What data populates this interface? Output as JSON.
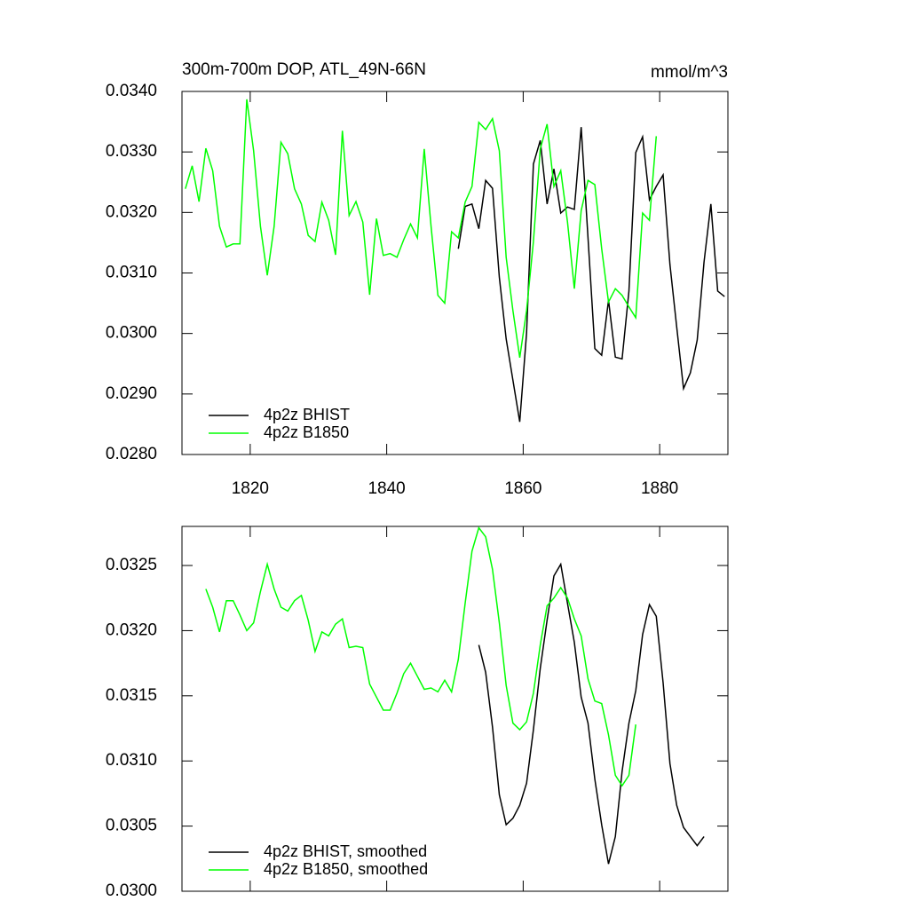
{
  "chart_data": [
    {
      "type": "line",
      "title": "300m-700m DOP, ATL_49N-66N",
      "units": "mmol/m^3",
      "x": [
        1810.5,
        1811.5,
        1812.5,
        1813.5,
        1814.5,
        1815.5,
        1816.5,
        1817.5,
        1818.5,
        1819.5,
        1820.5,
        1821.5,
        1822.5,
        1823.5,
        1824.5,
        1825.5,
        1826.5,
        1827.5,
        1828.5,
        1829.5,
        1830.5,
        1831.5,
        1832.5,
        1833.5,
        1834.5,
        1835.5,
        1836.5,
        1837.5,
        1838.5,
        1839.5,
        1840.5,
        1841.5,
        1842.5,
        1843.5,
        1844.5,
        1845.5,
        1846.5,
        1847.5,
        1848.5,
        1849.5,
        1850.5,
        1851.5,
        1852.5,
        1853.5,
        1854.5,
        1855.5,
        1856.5,
        1857.5,
        1858.5,
        1859.5,
        1860.5,
        1861.5,
        1862.5,
        1863.5,
        1864.5,
        1865.5,
        1866.5,
        1867.5,
        1868.5,
        1869.5,
        1870.5,
        1871.5,
        1872.5,
        1873.5,
        1874.5,
        1875.5,
        1876.5,
        1877.5,
        1878.5,
        1879.5,
        1880.5,
        1881.5,
        1882.5,
        1883.5,
        1884.5,
        1885.5,
        1886.5,
        1887.5,
        1888.5,
        1889.5
      ],
      "series": [
        {
          "name": "4p2z BHIST",
          "color": "#000000",
          "values": [
            null,
            null,
            null,
            null,
            null,
            null,
            null,
            null,
            null,
            null,
            null,
            null,
            null,
            null,
            null,
            null,
            null,
            null,
            null,
            null,
            null,
            null,
            null,
            null,
            null,
            null,
            null,
            null,
            null,
            null,
            null,
            null,
            null,
            null,
            null,
            null,
            null,
            null,
            null,
            null,
            0.0314,
            0.0321,
            0.03214,
            0.03173,
            0.03253,
            0.0324,
            0.03093,
            0.02991,
            0.02923,
            0.02854,
            0.03001,
            0.0328,
            0.03319,
            0.03214,
            0.03272,
            0.03199,
            0.03209,
            0.03205,
            0.03341,
            0.03158,
            0.02975,
            0.02964,
            0.03055,
            0.02961,
            0.02958,
            0.0307,
            0.03299,
            0.03325,
            0.03221,
            0.03243,
            0.03262,
            0.03114,
            0.03011,
            0.02909,
            0.02935,
            0.02989,
            0.03118,
            0.03214,
            0.0307,
            0.03061
          ]
        },
        {
          "name": "4p2z B1850",
          "color": "#00ff00",
          "values": [
            0.03239,
            0.03277,
            0.03218,
            0.03306,
            0.03269,
            0.03177,
            0.03143,
            0.03148,
            0.03148,
            0.03387,
            0.03302,
            0.03177,
            0.03096,
            0.03177,
            0.03316,
            0.03297,
            0.03239,
            0.03214,
            0.03162,
            0.03152,
            0.03217,
            0.03187,
            0.0313,
            0.03335,
            0.03195,
            0.03218,
            0.03184,
            0.03064,
            0.0319,
            0.03129,
            0.03132,
            0.03126,
            0.03155,
            0.03181,
            0.03158,
            0.03305,
            0.03177,
            0.03063,
            0.0305,
            0.03168,
            0.03158,
            0.03217,
            0.03243,
            0.03349,
            0.03337,
            0.03355,
            0.03302,
            0.03126,
            0.03038,
            0.0296,
            0.03038,
            0.03152,
            0.03305,
            0.03346,
            0.03243,
            0.03269,
            0.03184,
            0.03074,
            0.03203,
            0.03253,
            0.03246,
            0.0314,
            0.03052,
            0.03074,
            0.03063,
            0.03044,
            0.03026,
            0.03199,
            0.03187,
            0.03326,
            null,
            null,
            null,
            null,
            null,
            null,
            null,
            null,
            null,
            null
          ]
        }
      ],
      "xlim": [
        1810,
        1890
      ],
      "xticks": [
        1820,
        1840,
        1860,
        1880
      ],
      "ylim": [
        0.028,
        0.034
      ],
      "yticks": [
        {
          "value": 0.028,
          "label": "0.0280"
        },
        {
          "value": 0.029,
          "label": "0.0290"
        },
        {
          "value": 0.03,
          "label": "0.0300"
        },
        {
          "value": 0.031,
          "label": "0.0310"
        },
        {
          "value": 0.032,
          "label": "0.0320"
        },
        {
          "value": 0.033,
          "label": "0.0330"
        },
        {
          "value": 0.034,
          "label": "0.0340"
        }
      ],
      "legend": "lower left"
    },
    {
      "type": "line",
      "x": [
        1810.5,
        1811.5,
        1812.5,
        1813.5,
        1814.5,
        1815.5,
        1816.5,
        1817.5,
        1818.5,
        1819.5,
        1820.5,
        1821.5,
        1822.5,
        1823.5,
        1824.5,
        1825.5,
        1826.5,
        1827.5,
        1828.5,
        1829.5,
        1830.5,
        1831.5,
        1832.5,
        1833.5,
        1834.5,
        1835.5,
        1836.5,
        1837.5,
        1838.5,
        1839.5,
        1840.5,
        1841.5,
        1842.5,
        1843.5,
        1844.5,
        1845.5,
        1846.5,
        1847.5,
        1848.5,
        1849.5,
        1850.5,
        1851.5,
        1852.5,
        1853.5,
        1854.5,
        1855.5,
        1856.5,
        1857.5,
        1858.5,
        1859.5,
        1860.5,
        1861.5,
        1862.5,
        1863.5,
        1864.5,
        1865.5,
        1866.5,
        1867.5,
        1868.5,
        1869.5,
        1870.5,
        1871.5,
        1872.5,
        1873.5,
        1874.5,
        1875.5,
        1876.5,
        1877.5,
        1878.5,
        1879.5,
        1880.5,
        1881.5,
        1882.5,
        1883.5,
        1884.5,
        1885.5,
        1886.5,
        1887.5,
        1888.5,
        1889.5
      ],
      "series": [
        {
          "name": "4p2z BHIST, smoothed",
          "color": "#000000",
          "values": [
            null,
            null,
            null,
            null,
            null,
            null,
            null,
            null,
            null,
            null,
            null,
            null,
            null,
            null,
            null,
            null,
            null,
            null,
            null,
            null,
            null,
            null,
            null,
            null,
            null,
            null,
            null,
            null,
            null,
            null,
            null,
            null,
            null,
            null,
            null,
            null,
            null,
            null,
            null,
            null,
            null,
            null,
            null,
            0.03189,
            0.03168,
            0.03126,
            0.03074,
            0.03051,
            0.03056,
            0.03066,
            0.03083,
            0.03124,
            0.03171,
            0.03208,
            0.03242,
            0.03251,
            0.03221,
            0.03191,
            0.03149,
            0.03129,
            0.03086,
            0.03051,
            0.03021,
            0.03042,
            0.03092,
            0.03129,
            0.03154,
            0.03197,
            0.0322,
            0.03211,
            0.0316,
            0.03098,
            0.03066,
            0.03049,
            0.03042,
            0.03035,
            0.03042,
            null,
            null,
            null
          ]
        },
        {
          "name": "4p2z B1850, smoothed",
          "color": "#00ff00",
          "values": [
            null,
            null,
            null,
            0.03232,
            0.03218,
            0.03199,
            0.03223,
            0.03223,
            0.03212,
            0.032,
            0.03206,
            0.0323,
            0.03251,
            0.03232,
            0.03218,
            0.03215,
            0.03223,
            0.03227,
            0.03208,
            0.03184,
            0.03199,
            0.03196,
            0.03205,
            0.03209,
            0.03187,
            0.03188,
            0.03187,
            0.03159,
            0.03149,
            0.03139,
            0.03139,
            0.03152,
            0.03167,
            0.03175,
            0.03165,
            0.03155,
            0.03156,
            0.03153,
            0.03162,
            0.03153,
            0.03178,
            0.03221,
            0.03261,
            0.03279,
            0.03272,
            0.03247,
            0.03206,
            0.03158,
            0.03129,
            0.03124,
            0.0313,
            0.03152,
            0.03189,
            0.03219,
            0.03225,
            0.03233,
            0.03225,
            0.03209,
            0.03196,
            0.03163,
            0.03146,
            0.03144,
            0.0312,
            0.03089,
            0.03081,
            0.03089,
            0.03128,
            null,
            null,
            null,
            null,
            null,
            null,
            null,
            null,
            null,
            null,
            null,
            null,
            null
          ]
        }
      ],
      "xlim": [
        1810,
        1890
      ],
      "xticks": [
        1820,
        1840,
        1860,
        1880
      ],
      "xtick_labels": false,
      "ylim": [
        0.03,
        0.0328
      ],
      "yticks": [
        {
          "value": 0.03,
          "label": "0.0300"
        },
        {
          "value": 0.0305,
          "label": "0.0305"
        },
        {
          "value": 0.031,
          "label": "0.0310"
        },
        {
          "value": 0.0315,
          "label": "0.0315"
        },
        {
          "value": 0.032,
          "label": "0.0320"
        },
        {
          "value": 0.0325,
          "label": "0.0325"
        }
      ],
      "legend": "lower left"
    }
  ]
}
